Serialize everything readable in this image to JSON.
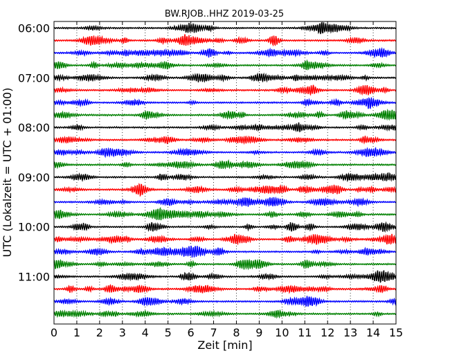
{
  "chart_data": {
    "type": "line",
    "title": "BW.RJOB..HHZ 2019-03-25",
    "xlabel": "Zeit  [min]",
    "ylabel": "UTC (Lokalzeit = UTC + 01:00)",
    "xlim": [
      0,
      15
    ],
    "x_ticks": [
      "0",
      "1",
      "2",
      "3",
      "4",
      "5",
      "6",
      "7",
      "8",
      "9",
      "10",
      "11",
      "12",
      "13",
      "14",
      "15"
    ],
    "y_ticks": [
      "06:00",
      "07:00",
      "08:00",
      "09:00",
      "10:00",
      "11:00"
    ],
    "grid": "vertical dotted",
    "trace_minutes": 15,
    "trace_colors": [
      "#000000",
      "#ff0000",
      "#0000ff",
      "#008000"
    ],
    "series": [
      {
        "start": "06:00"
      },
      {
        "start": "06:15"
      },
      {
        "start": "06:30"
      },
      {
        "start": "06:45"
      },
      {
        "start": "07:00"
      },
      {
        "start": "07:15"
      },
      {
        "start": "07:30"
      },
      {
        "start": "07:45"
      },
      {
        "start": "08:00"
      },
      {
        "start": "08:15"
      },
      {
        "start": "08:30"
      },
      {
        "start": "08:45"
      },
      {
        "start": "09:00"
      },
      {
        "start": "09:15"
      },
      {
        "start": "09:30"
      },
      {
        "start": "09:45"
      },
      {
        "start": "10:00"
      },
      {
        "start": "10:15"
      },
      {
        "start": "10:30"
      },
      {
        "start": "10:45"
      },
      {
        "start": "11:00"
      },
      {
        "start": "11:15"
      },
      {
        "start": "11:30"
      },
      {
        "start": "11:45"
      }
    ]
  }
}
